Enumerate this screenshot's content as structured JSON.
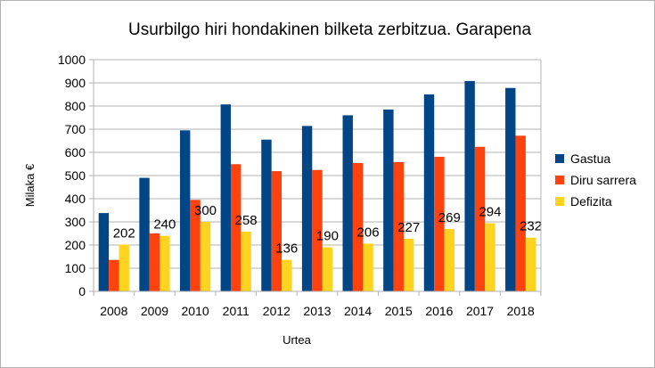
{
  "chart_data": {
    "type": "bar",
    "title": "Usurbilgo hiri hondakinen bilketa zerbitzua. Garapena",
    "xlabel": "Urtea",
    "ylabel": "Milaka €",
    "ylim": [
      0,
      1000
    ],
    "yticks": [
      "0",
      "100",
      "200",
      "300",
      "400",
      "500",
      "600",
      "700",
      "800",
      "900",
      "1000"
    ],
    "grid": "horizontal",
    "legend_position": "right",
    "categories": [
      "2008",
      "2009",
      "2010",
      "2011",
      "2012",
      "2013",
      "2014",
      "2015",
      "2016",
      "2017",
      "2018"
    ],
    "series": [
      {
        "name": "Gastua",
        "color": "#004586",
        "values": [
          338,
          490,
          695,
          807,
          655,
          714,
          760,
          785,
          850,
          908,
          878
        ]
      },
      {
        "name": "Diru sarrera",
        "color": "#ff420e",
        "values": [
          136,
          250,
          395,
          549,
          519,
          524,
          554,
          558,
          581,
          624,
          672
        ]
      },
      {
        "name": "Defizita",
        "color": "#ffd320",
        "values": [
          202,
          240,
          300,
          258,
          136,
          190,
          206,
          227,
          269,
          294,
          232
        ],
        "data_labels": [
          "202",
          "240",
          "300",
          "258",
          "136",
          "190",
          "206",
          "227",
          "269",
          "294",
          "232"
        ]
      }
    ]
  }
}
